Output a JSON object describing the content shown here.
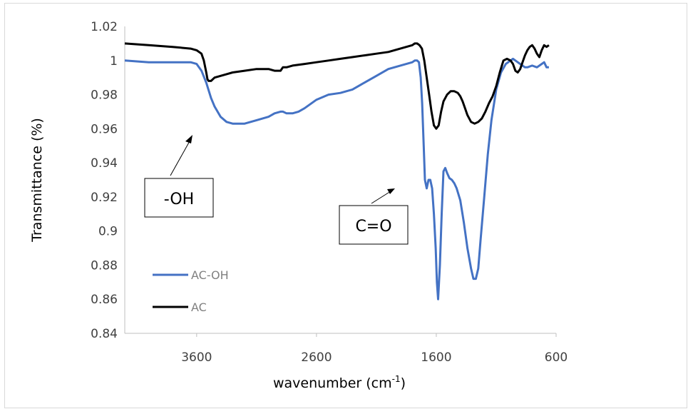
{
  "chart_data": {
    "type": "line",
    "xlabel_main": "wavenumber (cm",
    "xlabel_sup": "-1",
    "xlabel_close": ")",
    "ylabel": "Transmittance (%)",
    "xlim": [
      4200,
      600
    ],
    "x_reversed": true,
    "ylim": [
      0.84,
      1.02
    ],
    "x_ticks": [
      "3600",
      "2600",
      "1600",
      "600"
    ],
    "y_ticks": [
      "0.84",
      "0.86",
      "0.88",
      "0.9",
      "0.92",
      "0.94",
      "0.96",
      "0.98",
      "1",
      "1.02"
    ],
    "legend_position": "lower-left",
    "series": [
      {
        "name": "AC-OH",
        "color": "#4472c4",
        "x": [
          4200,
          4000,
          3800,
          3650,
          3600,
          3560,
          3520,
          3480,
          3450,
          3400,
          3350,
          3300,
          3250,
          3200,
          3100,
          3000,
          2950,
          2900,
          2880,
          2850,
          2800,
          2750,
          2700,
          2600,
          2500,
          2400,
          2300,
          2200,
          2100,
          2000,
          1900,
          1850,
          1800,
          1780,
          1760,
          1745,
          1730,
          1718,
          1705,
          1695,
          1680,
          1665,
          1650,
          1635,
          1620,
          1605,
          1595,
          1585,
          1570,
          1555,
          1540,
          1525,
          1510,
          1490,
          1470,
          1450,
          1430,
          1400,
          1370,
          1340,
          1310,
          1290,
          1270,
          1250,
          1230,
          1200,
          1170,
          1140,
          1100,
          1060,
          1020,
          980,
          960,
          940,
          920,
          900,
          880,
          860,
          840,
          800,
          760,
          720,
          700,
          680,
          660
        ],
        "y": [
          1.0,
          0.999,
          0.999,
          0.999,
          0.998,
          0.994,
          0.987,
          0.978,
          0.973,
          0.967,
          0.964,
          0.963,
          0.963,
          0.963,
          0.965,
          0.967,
          0.969,
          0.97,
          0.97,
          0.969,
          0.969,
          0.97,
          0.972,
          0.977,
          0.98,
          0.981,
          0.983,
          0.987,
          0.991,
          0.995,
          0.997,
          0.998,
          0.999,
          1.0,
          1.0,
          0.999,
          0.99,
          0.975,
          0.95,
          0.93,
          0.925,
          0.93,
          0.93,
          0.925,
          0.91,
          0.89,
          0.87,
          0.86,
          0.88,
          0.91,
          0.935,
          0.937,
          0.934,
          0.931,
          0.93,
          0.928,
          0.925,
          0.918,
          0.905,
          0.89,
          0.878,
          0.872,
          0.872,
          0.878,
          0.895,
          0.92,
          0.945,
          0.965,
          0.983,
          0.993,
          0.998,
          1.0,
          1.001,
          1.0,
          0.999,
          0.998,
          0.997,
          0.996,
          0.996,
          0.997,
          0.996,
          0.998,
          0.999,
          0.996,
          0.996
        ]
      },
      {
        "name": "AC",
        "color": "#000000",
        "x": [
          4200,
          4000,
          3800,
          3650,
          3600,
          3560,
          3540,
          3520,
          3510,
          3500,
          3480,
          3450,
          3400,
          3350,
          3300,
          3200,
          3100,
          3000,
          2950,
          2900,
          2880,
          2850,
          2800,
          2700,
          2600,
          2500,
          2400,
          2300,
          2200,
          2100,
          2000,
          1900,
          1850,
          1800,
          1780,
          1760,
          1740,
          1720,
          1700,
          1680,
          1660,
          1640,
          1620,
          1600,
          1580,
          1560,
          1540,
          1510,
          1480,
          1450,
          1420,
          1400,
          1380,
          1360,
          1340,
          1310,
          1280,
          1250,
          1220,
          1190,
          1160,
          1130,
          1100,
          1070,
          1040,
          1010,
          980,
          960,
          940,
          920,
          900,
          880,
          860,
          840,
          820,
          800,
          780,
          760,
          740,
          720,
          700,
          680,
          660
        ],
        "y": [
          1.01,
          1.009,
          1.008,
          1.007,
          1.006,
          1.004,
          1.0,
          0.993,
          0.989,
          0.988,
          0.988,
          0.99,
          0.991,
          0.992,
          0.993,
          0.994,
          0.995,
          0.995,
          0.994,
          0.994,
          0.996,
          0.996,
          0.997,
          0.998,
          0.999,
          1.0,
          1.001,
          1.002,
          1.003,
          1.004,
          1.005,
          1.007,
          1.008,
          1.009,
          1.01,
          1.01,
          1.009,
          1.007,
          1.0,
          0.99,
          0.98,
          0.97,
          0.962,
          0.96,
          0.962,
          0.97,
          0.976,
          0.98,
          0.982,
          0.982,
          0.981,
          0.979,
          0.976,
          0.972,
          0.968,
          0.964,
          0.963,
          0.964,
          0.966,
          0.97,
          0.975,
          0.979,
          0.985,
          0.993,
          1.0,
          1.001,
          1.0,
          0.998,
          0.994,
          0.993,
          0.995,
          0.999,
          1.003,
          1.006,
          1.008,
          1.009,
          1.007,
          1.004,
          1.002,
          1.006,
          1.009,
          1.008,
          1.009
        ]
      }
    ],
    "annotations": [
      {
        "label": "-OH"
      },
      {
        "label": "C=O"
      }
    ]
  }
}
